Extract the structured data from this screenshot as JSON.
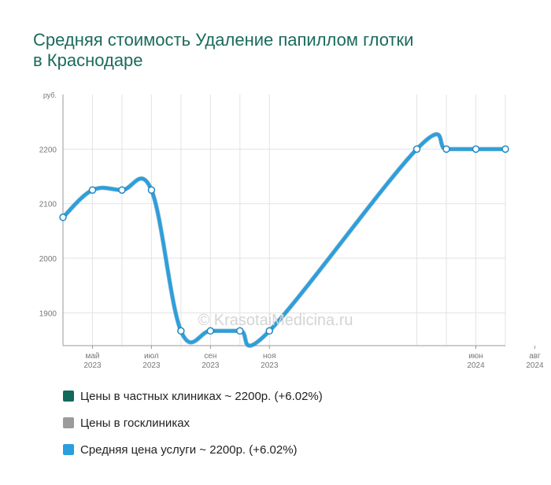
{
  "title_lines": [
    "Средняя стоимость Удаление папиллом глотки",
    "в Краснодаре"
  ],
  "watermark": "© KrasotaiMedicina.ru",
  "colors": {
    "title": "#1a6b5c",
    "private": "#13695c",
    "public": "#9b9b9b",
    "average": "#2b9fdd",
    "grid": "#e3e3e3",
    "axis": "#999999"
  },
  "legend": [
    {
      "label": "Цены в частных клиниках ~ 2200р. (+6.02%)",
      "color": "#13695c"
    },
    {
      "label": "Цены в госклиниках",
      "color": "#9b9b9b"
    },
    {
      "label": "Средняя цена услуги ~ 2200р. (+6.02%)",
      "color": "#2b9fdd"
    }
  ],
  "chart_data": {
    "type": "line",
    "y_unit": "руб.",
    "ylim": [
      1840,
      2300
    ],
    "y_ticks": [
      1900,
      2000,
      2100,
      2200
    ],
    "x_ticks": [
      {
        "month": "май",
        "year": "2023"
      },
      {
        "month": "июл",
        "year": "2023"
      },
      {
        "month": "сен",
        "year": "2023"
      },
      {
        "month": "ноя",
        "year": "2023"
      },
      {
        "month": "июн",
        "year": "2024"
      },
      {
        "month": "авг",
        "year": "2024"
      }
    ],
    "grid": true,
    "series": [
      {
        "name": "Средняя цена услуги",
        "x": [
          "2023-04",
          "2023-05",
          "2023-06",
          "2023-07",
          "2023-08",
          "2023-09",
          "2023-10",
          "2023-11",
          "2024-04",
          "2024-05",
          "2024-06",
          "2024-07"
        ],
        "values": [
          2075,
          2125,
          2125,
          2125,
          1867,
          1867,
          1867,
          1867,
          2200,
          2200,
          2200,
          2200
        ]
      }
    ]
  }
}
